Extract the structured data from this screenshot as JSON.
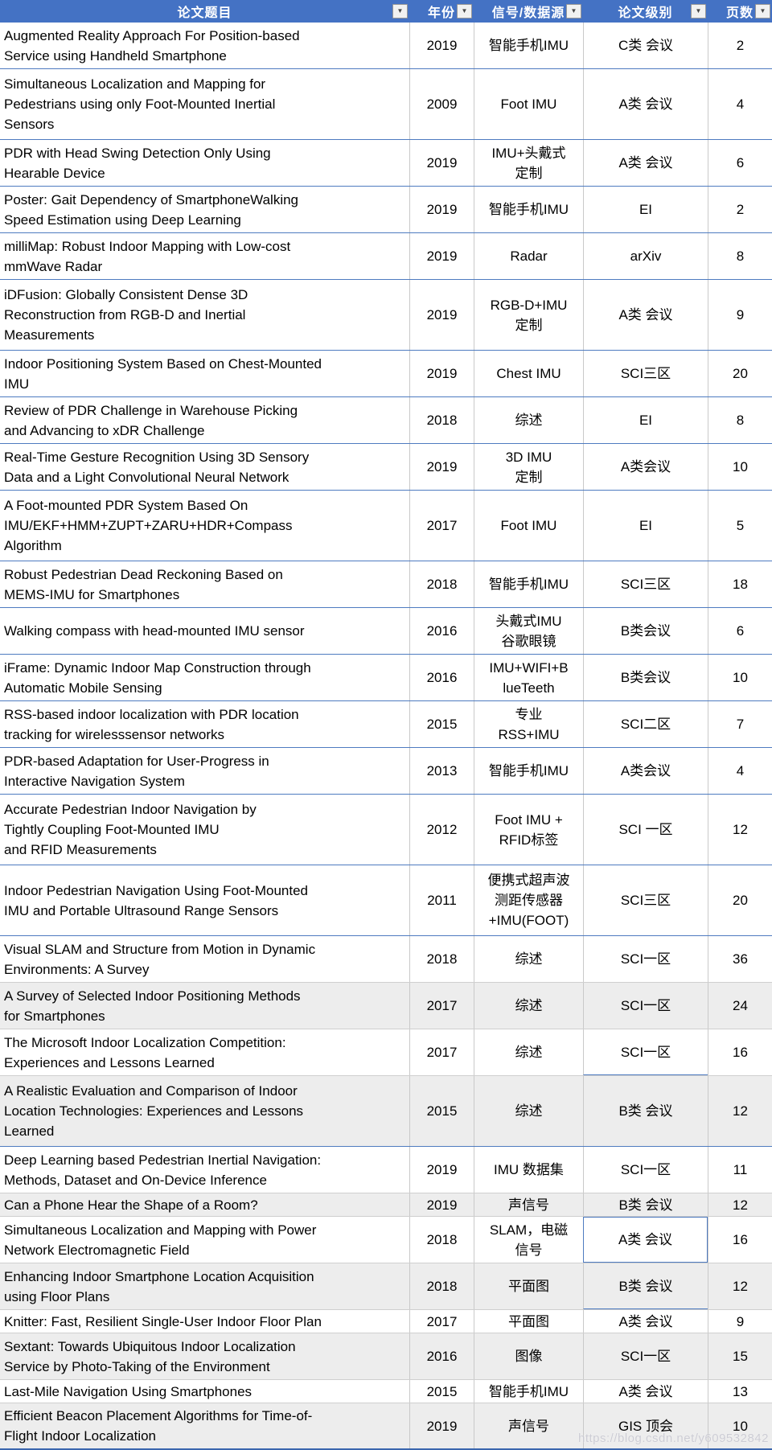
{
  "table": {
    "columns": [
      {
        "key": "title",
        "label": "论文题目"
      },
      {
        "key": "year",
        "label": "年份"
      },
      {
        "key": "signal",
        "label": "信号/数据源"
      },
      {
        "key": "level",
        "label": "论文级别"
      },
      {
        "key": "pages",
        "label": "页数"
      }
    ],
    "rows": [
      {
        "title": "Augmented Reality Approach For Position-based\nService using Handheld Smartphone",
        "year": "2019",
        "signal": "智能手机IMU",
        "level": "C类 会议",
        "pages": "2"
      },
      {
        "title": "Simultaneous Localization and Mapping for\nPedestrians using only Foot-Mounted Inertial\nSensors",
        "year": "2009",
        "signal": "Foot IMU",
        "level": "A类 会议",
        "pages": "4"
      },
      {
        "title": "PDR with Head Swing Detection Only Using\nHearable Device",
        "year": "2019",
        "signal": "IMU+头戴式\n定制",
        "level": "A类 会议",
        "pages": "6"
      },
      {
        "title": "Poster: Gait Dependency of SmartphoneWalking\nSpeed Estimation using Deep Learning",
        "year": "2019",
        "signal": "智能手机IMU",
        "level": "EI",
        "pages": "2"
      },
      {
        "title": "milliMap: Robust Indoor Mapping with Low-cost\nmmWave Radar",
        "year": "2019",
        "signal": "Radar",
        "level": "arXiv",
        "pages": "8"
      },
      {
        "title": "iDFusion: Globally Consistent Dense 3D\nReconstruction from RGB-D and Inertial\nMeasurements",
        "year": "2019",
        "signal": "RGB-D+IMU\n定制",
        "level": "A类 会议",
        "pages": "9"
      },
      {
        "title": "Indoor Positioning System Based on Chest-Mounted\nIMU",
        "year": "2019",
        "signal": "Chest IMU",
        "level": "SCI三区",
        "pages": "20"
      },
      {
        "title": "Review of PDR Challenge in Warehouse Picking\nand Advancing to xDR Challenge",
        "year": "2018",
        "signal": "综述",
        "level": "EI",
        "pages": "8"
      },
      {
        "title": "Real-Time Gesture Recognition Using 3D Sensory\nData and a Light Convolutional Neural Network",
        "year": "2019",
        "signal": "3D IMU\n定制",
        "level": "A类会议",
        "pages": "10"
      },
      {
        "title": "A Foot-mounted PDR System Based On\nIMU/EKF+HMM+ZUPT+ZARU+HDR+Compass\nAlgorithm",
        "year": "2017",
        "signal": "Foot IMU",
        "level": "EI",
        "pages": "5"
      },
      {
        "title": "Robust Pedestrian Dead Reckoning Based on\nMEMS-IMU for Smartphones",
        "year": "2018",
        "signal": "智能手机IMU",
        "level": "SCI三区",
        "pages": "18"
      },
      {
        "title": "Walking compass with head-mounted IMU sensor",
        "year": "2016",
        "signal": "头戴式IMU\n谷歌眼镜",
        "level": "B类会议",
        "pages": "6"
      },
      {
        "title": "iFrame: Dynamic Indoor Map Construction through\nAutomatic Mobile Sensing",
        "year": "2016",
        "signal": "IMU+WIFI+B\nlueTeeth",
        "level": "B类会议",
        "pages": "10"
      },
      {
        "title": "RSS-based indoor localization with PDR location\ntracking for wirelesssensor networks",
        "year": "2015",
        "signal": "专业\nRSS+IMU",
        "level": "SCI二区",
        "pages": "7"
      },
      {
        "title": "PDR-based Adaptation for User-Progress in\nInteractive Navigation System",
        "year": "2013",
        "signal": "智能手机IMU",
        "level": "A类会议",
        "pages": "4"
      },
      {
        "title": "Accurate Pedestrian Indoor Navigation by\nTightly Coupling Foot-Mounted IMU\nand RFID Measurements",
        "year": "2012",
        "signal": "Foot IMU +\nRFID标签",
        "level": "SCI 一区",
        "pages": "12"
      },
      {
        "title": "Indoor Pedestrian Navigation Using Foot-Mounted\nIMU and Portable Ultrasound Range Sensors",
        "year": "2011",
        "signal": "便携式超声波\n测距传感器\n+IMU(FOOT)",
        "level": "SCI三区",
        "pages": "20"
      },
      {
        "title": "Visual SLAM and Structure from Motion in Dynamic\nEnvironments: A Survey",
        "year": "2018",
        "signal": "综述",
        "level": "SCI一区",
        "pages": "36"
      },
      {
        "title": "A Survey of Selected Indoor Positioning Methods\nfor Smartphones",
        "year": "2017",
        "signal": "综述",
        "level": "SCI一区",
        "pages": "24"
      },
      {
        "title": "The Microsoft Indoor Localization Competition:\nExperiences and Lessons Learned",
        "year": "2017",
        "signal": "综述",
        "level": "SCI一区",
        "pages": "16"
      },
      {
        "title": "A Realistic Evaluation and Comparison of Indoor\nLocation Technologies: Experiences and Lessons\nLearned",
        "year": "2015",
        "signal": "综述",
        "level": "B类 会议",
        "pages": "12"
      },
      {
        "title": "Deep Learning based Pedestrian Inertial Navigation:\nMethods, Dataset and On-Device Inference",
        "year": "2019",
        "signal": "IMU 数据集",
        "level": "SCI一区",
        "pages": "11"
      },
      {
        "title": "Can a Phone Hear the Shape of a Room?",
        "year": "2019",
        "signal": "声信号",
        "level": "B类 会议",
        "pages": "12"
      },
      {
        "title": "Simultaneous Localization and Mapping with Power\nNetwork Electromagnetic Field",
        "year": "2018",
        "signal": "SLAM，电磁\n信号",
        "level": "A类 会议",
        "pages": "16"
      },
      {
        "title": "Enhancing Indoor Smartphone Location Acquisition\nusing Floor Plans",
        "year": "2018",
        "signal": "平面图",
        "level": "B类 会议",
        "pages": "12"
      },
      {
        "title": "Knitter: Fast, Resilient Single-User Indoor Floor Plan",
        "year": "2017",
        "signal": "平面图",
        "level": "A类 会议",
        "pages": "9"
      },
      {
        "title": "Sextant: Towards Ubiquitous Indoor Localization\nService by Photo-Taking of the Environment",
        "year": "2016",
        "signal": "图像",
        "level": "SCI一区",
        "pages": "15"
      },
      {
        "title": "Last-Mile Navigation Using Smartphones",
        "year": "2015",
        "signal": "智能手机IMU",
        "level": "A类 会议",
        "pages": "13"
      },
      {
        "title": "Efficient Beacon Placement Algorithms for Time-of-\nFlight Indoor Localization",
        "year": "2019",
        "signal": "声信号",
        "level": "GIS 顶会",
        "pages": "10"
      }
    ]
  },
  "watermark": "https://blog.csdn.net/y609532842",
  "colors": {
    "header_bg": "#4472C4",
    "header_text": "#FFFFFF",
    "row_border_blue": "#4E7BC0",
    "row_border_gray": "#CFCFCF",
    "column_border": "#C9C9C9",
    "band_bg": "#EDEDED",
    "bottom_border": "#3A66AE"
  }
}
